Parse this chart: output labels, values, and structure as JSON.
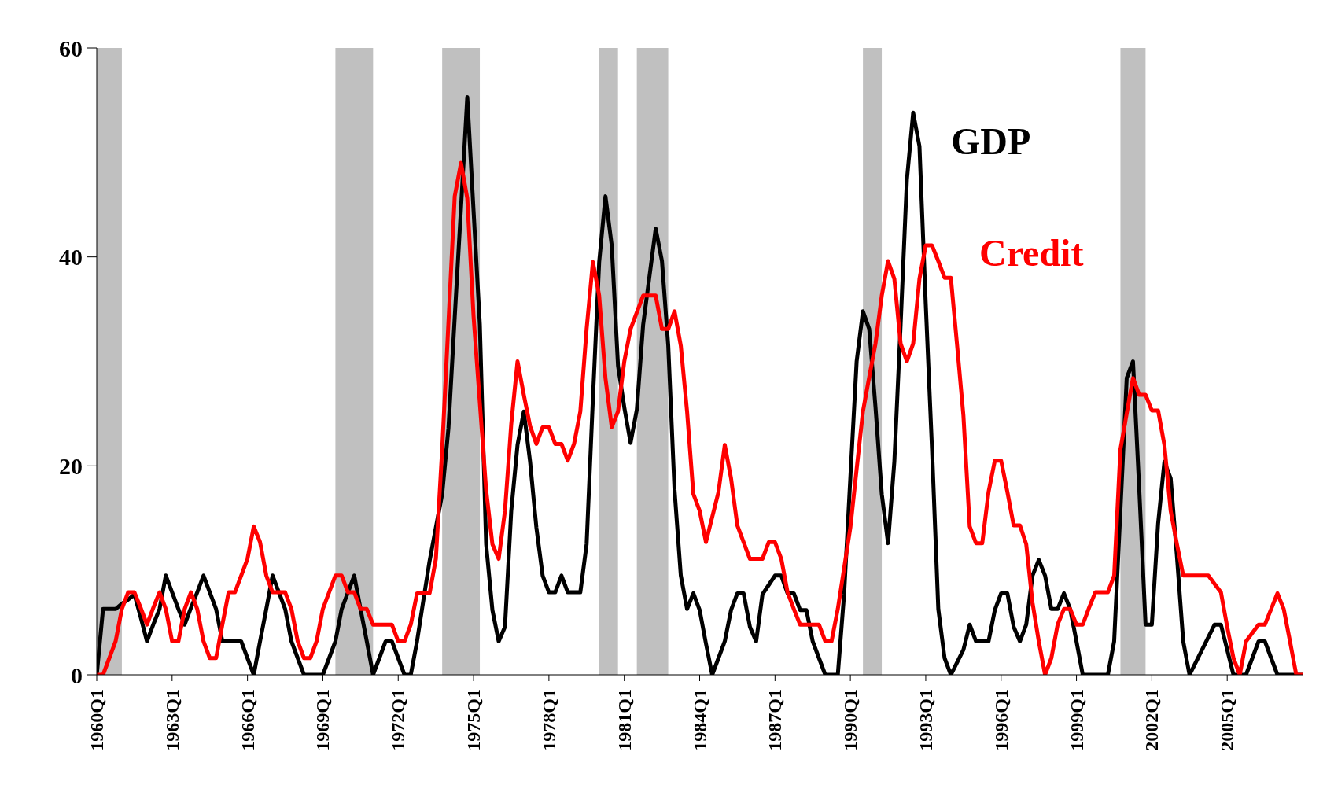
{
  "chart_data": {
    "type": "line",
    "x": [
      "1960-01",
      "1960-04",
      "1960-07",
      "1960-10",
      "1961-01",
      "1961-04",
      "1961-07",
      "1961-10",
      "1962-01",
      "1962-04",
      "1962-07",
      "1962-10",
      "1963-01",
      "1963-04",
      "1963-07",
      "1963-10",
      "1964-01",
      "1964-04",
      "1964-07",
      "1964-10",
      "1965-01",
      "1965-04",
      "1965-07",
      "1965-10",
      "1966-01",
      "1966-04",
      "1966-07",
      "1966-10",
      "1967-01",
      "1967-04",
      "1967-07",
      "1967-10",
      "1968-01",
      "1968-04",
      "1968-07",
      "1968-10",
      "1969-01",
      "1969-04",
      "1969-07",
      "1969-10",
      "1970-01",
      "1970-04",
      "1970-07",
      "1970-10",
      "1971-01",
      "1971-04",
      "1971-07",
      "1971-10",
      "1972-01",
      "1972-04",
      "1972-07",
      "1972-10",
      "1973-01",
      "1973-04",
      "1973-07",
      "1973-10",
      "1974-01",
      "1974-04",
      "1974-07",
      "1974-10",
      "1975-01",
      "1975-04",
      "1975-07",
      "1975-10",
      "1976-01",
      "1976-04",
      "1976-07",
      "1976-10",
      "1977-01",
      "1977-04",
      "1977-07",
      "1977-10",
      "1978-01",
      "1978-04",
      "1978-07",
      "1978-10",
      "1979-01",
      "1979-04",
      "1979-07",
      "1979-10",
      "1980-01",
      "1980-04",
      "1980-07",
      "1980-10",
      "1981-01",
      "1981-04",
      "1981-07",
      "1981-10",
      "1982-01",
      "1982-04",
      "1982-07",
      "1982-10",
      "1983-01",
      "1983-04",
      "1983-07",
      "1983-10",
      "1984-01",
      "1984-04",
      "1984-07",
      "1984-10",
      "1985-01",
      "1985-04",
      "1985-07",
      "1985-10",
      "1986-01",
      "1986-04",
      "1986-07",
      "1986-10",
      "1987-01",
      "1987-04",
      "1987-07",
      "1987-10",
      "1988-01",
      "1988-04",
      "1988-07",
      "1988-10",
      "1989-01",
      "1989-04",
      "1989-07",
      "1989-10",
      "1990-01",
      "1990-04",
      "1990-07",
      "1990-10",
      "1991-01",
      "1991-04",
      "1991-07",
      "1991-10",
      "1992-01",
      "1992-04",
      "1992-07",
      "1992-10",
      "1993-01",
      "1993-04",
      "1993-07",
      "1993-10",
      "1994-01",
      "1994-04",
      "1994-07",
      "1994-10",
      "1995-01",
      "1995-04",
      "1995-07",
      "1995-10",
      "1996-01",
      "1996-04",
      "1996-07",
      "1996-10",
      "1997-01",
      "1997-04",
      "1997-07",
      "1997-10",
      "1998-01",
      "1998-04",
      "1998-07",
      "1998-10",
      "1999-01",
      "1999-04",
      "1999-07",
      "1999-10",
      "2000-01",
      "2000-04",
      "2000-07",
      "2000-10",
      "2001-01",
      "2001-04",
      "2001-07",
      "2001-10",
      "2002-01",
      "2002-04",
      "2002-07",
      "2002-10",
      "2003-01",
      "2003-04",
      "2003-07",
      "2003-10",
      "2004-01",
      "2004-04",
      "2004-07",
      "2004-10",
      "2005-01",
      "2005-04",
      "2005-07",
      "2005-10",
      "2006-01",
      "2006-04",
      "2006-07",
      "2006-10",
      "2007-01",
      "2007-04",
      "2007-07",
      "2007-10",
      "2008-01"
    ],
    "xlim": [
      "1960-01",
      "2008-01"
    ],
    "xticks": [
      {
        "value": "1960-01",
        "label": "1960Q1"
      },
      {
        "value": "1963-01",
        "label": "1963Q1"
      },
      {
        "value": "1966-01",
        "label": "1966Q1"
      },
      {
        "value": "1969-01",
        "label": "1969Q1"
      },
      {
        "value": "1972-01",
        "label": "1972Q1"
      },
      {
        "value": "1975-01",
        "label": "1975Q1"
      },
      {
        "value": "1978-01",
        "label": "1978Q1"
      },
      {
        "value": "1981-01",
        "label": "1981Q1"
      },
      {
        "value": "1984-01",
        "label": "1984Q1"
      },
      {
        "value": "1987-01",
        "label": "1987Q1"
      },
      {
        "value": "1990-01",
        "label": "1990Q1"
      },
      {
        "value": "1993-01",
        "label": "1993Q1"
      },
      {
        "value": "1996-01",
        "label": "1996Q1"
      },
      {
        "value": "1999-01",
        "label": "1999Q1"
      },
      {
        "value": "2002-01",
        "label": "2002Q1"
      },
      {
        "value": "2005-01",
        "label": "2005Q1"
      }
    ],
    "ylim": [
      0,
      60
    ],
    "yticks": [
      0,
      20,
      40,
      60
    ],
    "grid": false,
    "legend": false,
    "marker": "none",
    "line_style": "solid",
    "bands": [
      {
        "axis": "x",
        "from": "1960-01",
        "to": "1961-01",
        "color": "#c0c0c0"
      },
      {
        "axis": "x",
        "from": "1969-07",
        "to": "1971-01",
        "color": "#c0c0c0"
      },
      {
        "axis": "x",
        "from": "1973-10",
        "to": "1975-04",
        "color": "#c0c0c0"
      },
      {
        "axis": "x",
        "from": "1980-01",
        "to": "1980-10",
        "color": "#c0c0c0"
      },
      {
        "axis": "x",
        "from": "1981-07",
        "to": "1982-10",
        "color": "#c0c0c0"
      },
      {
        "axis": "x",
        "from": "1990-07",
        "to": "1991-04",
        "color": "#c0c0c0"
      },
      {
        "axis": "x",
        "from": "2000-10",
        "to": "2001-10",
        "color": "#c0c0c0"
      }
    ],
    "series": [
      {
        "name": "GDP",
        "color": "#000000",
        "values": [
          0,
          6.3,
          6.3,
          6.3,
          6.8,
          7.2,
          7.7,
          5.5,
          3.2,
          4.8,
          6.3,
          9.5,
          7.9,
          6.3,
          4.8,
          6.4,
          7.9,
          9.5,
          7.9,
          6.3,
          3.2,
          3.2,
          3.2,
          3.2,
          1.6,
          0,
          3.2,
          6.3,
          9.5,
          7.9,
          6.3,
          3.2,
          1.6,
          0,
          0,
          0,
          0,
          1.6,
          3.2,
          6.3,
          7.9,
          9.5,
          6.3,
          3.2,
          0,
          1.6,
          3.2,
          3.2,
          1.6,
          0,
          0,
          3.2,
          7.1,
          10.9,
          14.1,
          17.3,
          23.6,
          34.2,
          44.7,
          55.3,
          44.4,
          33.5,
          12.5,
          6.2,
          3.2,
          4.6,
          15.7,
          22,
          25.2,
          20.4,
          14.1,
          9.5,
          7.9,
          7.9,
          9.5,
          7.9,
          7.9,
          7.9,
          12.5,
          26.4,
          39.5,
          45.8,
          41.1,
          29.6,
          25.6,
          22.2,
          25.4,
          33.5,
          38.1,
          42.7,
          39.6,
          31.5,
          17.7,
          9.5,
          6.3,
          7.8,
          6.2,
          3,
          0,
          1.6,
          3.2,
          6.2,
          7.8,
          7.8,
          4.6,
          3.2,
          7.7,
          8.6,
          9.5,
          9.5,
          7.8,
          7.8,
          6.2,
          6.2,
          3.2,
          1.6,
          0,
          0,
          0,
          7.7,
          18.9,
          30,
          34.8,
          33.1,
          25.6,
          17.3,
          12.6,
          20.4,
          33.5,
          47.4,
          53.8,
          50.6,
          35.5,
          21.6,
          6.3,
          1.6,
          0,
          1.2,
          2.4,
          4.8,
          3.2,
          3.2,
          3.2,
          6.2,
          7.8,
          7.8,
          4.6,
          3.2,
          4.8,
          9.5,
          11,
          9.5,
          6.3,
          6.3,
          7.8,
          6.3,
          3.2,
          0,
          0,
          0,
          0,
          0,
          3.2,
          15.8,
          28.4,
          30,
          17.7,
          4.8,
          4.8,
          14.5,
          20.4,
          18.8,
          11.3,
          3.2,
          0,
          1.2,
          2.4,
          3.6,
          4.8,
          4.8,
          2.4,
          0,
          0,
          0,
          1.6,
          3.2,
          3.2,
          1.6,
          0,
          0,
          0,
          0,
          0
        ]
      },
      {
        "name": "Credit",
        "color": "#ff0000",
        "values": [
          0,
          0,
          1.6,
          3.2,
          6.3,
          7.9,
          7.9,
          6.4,
          4.8,
          6.4,
          7.9,
          6.3,
          3.2,
          3.2,
          6.3,
          7.9,
          6.3,
          3.2,
          1.6,
          1.6,
          4.8,
          7.9,
          7.9,
          9.5,
          11.1,
          14.2,
          12.7,
          9.5,
          7.9,
          7.9,
          7.9,
          6.3,
          3.2,
          1.6,
          1.6,
          3.2,
          6.3,
          7.9,
          9.5,
          9.5,
          7.9,
          7.9,
          6.3,
          6.3,
          4.8,
          4.8,
          4.8,
          4.8,
          3.2,
          3.2,
          4.8,
          7.8,
          7.8,
          7.8,
          11.1,
          21.6,
          33.7,
          45.8,
          49,
          45.6,
          34.3,
          26,
          17.7,
          12.5,
          11.1,
          15.7,
          24,
          30,
          26.8,
          23.8,
          22.1,
          23.7,
          23.7,
          22.1,
          22.1,
          20.5,
          22.1,
          25.2,
          33.1,
          39.5,
          36.3,
          28.4,
          23.7,
          25.2,
          30,
          33.1,
          34.7,
          36.3,
          36.3,
          36.3,
          33.1,
          33.1,
          34.8,
          31.5,
          25.2,
          17.3,
          15.7,
          12.7,
          15.1,
          17.5,
          22,
          18.8,
          14.3,
          12.7,
          11.1,
          11.1,
          11.1,
          12.7,
          12.7,
          11.1,
          7.9,
          6.3,
          4.8,
          4.8,
          4.8,
          4.8,
          3.2,
          3.2,
          6.3,
          10.2,
          14.1,
          19.7,
          25.2,
          28.5,
          31.7,
          36.3,
          39.6,
          37.9,
          31.7,
          30,
          31.7,
          37.9,
          41.1,
          41.1,
          39.6,
          38,
          38,
          31.5,
          24.8,
          14.2,
          12.6,
          12.6,
          17.5,
          20.5,
          20.5,
          17.5,
          14.3,
          14.3,
          12.5,
          6.9,
          3.2,
          0,
          1.6,
          4.8,
          6.3,
          6.3,
          4.8,
          4.8,
          6.4,
          7.9,
          7.9,
          7.9,
          9.5,
          21.6,
          25,
          28.4,
          26.8,
          26.8,
          25.3,
          25.3,
          22,
          15.7,
          12.5,
          9.5,
          9.5,
          9.5,
          9.5,
          9.5,
          8.7,
          7.9,
          4.6,
          1.6,
          0,
          3.2,
          4,
          4.8,
          4.8,
          6.3,
          7.8,
          6.3,
          3.2,
          0,
          0
        ]
      }
    ]
  }
}
